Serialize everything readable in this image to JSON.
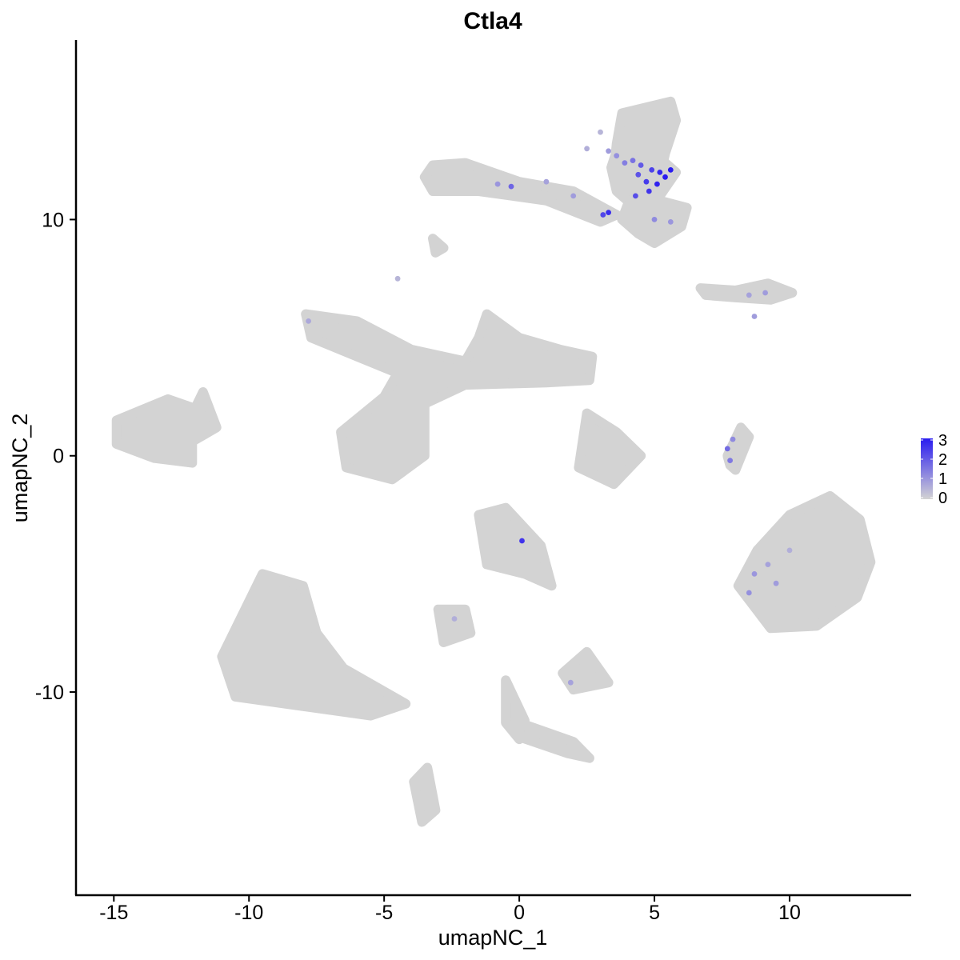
{
  "chart_data": {
    "type": "scatter",
    "title": "Ctla4",
    "xlabel": "umapNC_1",
    "ylabel": "umapNC_2",
    "xlim": [
      -16.4,
      14.5
    ],
    "ylim": [
      -18.6,
      17.6
    ],
    "x_ticks": [
      -15,
      -10,
      -5,
      0,
      5,
      10
    ],
    "y_ticks": [
      -10,
      0,
      10
    ],
    "x_tick_labels": [
      "-15",
      "-10",
      "-5",
      "0",
      "5",
      "10"
    ],
    "y_tick_labels": [
      "-10",
      "0",
      "10"
    ],
    "grid": false,
    "legend": {
      "placement": "right",
      "type": "gradient",
      "labels": [
        "3",
        "2",
        "1",
        "0"
      ],
      "values": [
        3,
        2,
        1,
        0
      ],
      "low_color": "#d3d3d3",
      "high_color": "#2a1cf0"
    },
    "low_color": "#d3d3d3",
    "high_color": "#2a1cf0",
    "clusters": [
      {
        "id": "top-cluster-upper",
        "points": [
          [
            5.6,
            15.0
          ],
          [
            3.8,
            14.5
          ],
          [
            3.6,
            13.2
          ],
          [
            3.5,
            12.0
          ],
          [
            4.4,
            11.6
          ],
          [
            5.2,
            11.8
          ],
          [
            5.4,
            12.8
          ],
          [
            5.8,
            14.2
          ]
        ]
      },
      {
        "id": "top-cluster-right",
        "points": [
          [
            3.6,
            12.9
          ],
          [
            5.2,
            12.6
          ],
          [
            5.8,
            12.0
          ],
          [
            5.2,
            11.0
          ],
          [
            4.2,
            10.6
          ],
          [
            3.6,
            11.2
          ],
          [
            3.4,
            12.2
          ]
        ]
      },
      {
        "id": "top-cluster-lower",
        "points": [
          [
            4.0,
            10.6
          ],
          [
            5.2,
            10.8
          ],
          [
            6.2,
            10.5
          ],
          [
            6.0,
            9.7
          ],
          [
            5.0,
            9.0
          ],
          [
            4.4,
            9.4
          ],
          [
            3.8,
            10.0
          ]
        ]
      },
      {
        "id": "top-cluster-arm",
        "points": [
          [
            -3.2,
            12.3
          ],
          [
            -2.0,
            12.4
          ],
          [
            0.0,
            11.6
          ],
          [
            2.0,
            11.2
          ],
          [
            3.6,
            10.2
          ],
          [
            3.0,
            9.9
          ],
          [
            1.0,
            10.8
          ],
          [
            -1.5,
            11.2
          ],
          [
            -3.2,
            11.2
          ],
          [
            -3.5,
            11.8
          ]
        ]
      },
      {
        "id": "small-blob-a",
        "points": [
          [
            -3.2,
            9.2
          ],
          [
            -3.0,
            9.0
          ],
          [
            -2.8,
            8.8
          ],
          [
            -3.1,
            8.6
          ]
        ]
      },
      {
        "id": "right-strand-upper",
        "points": [
          [
            6.7,
            7.1
          ],
          [
            8.0,
            7.0
          ],
          [
            9.2,
            7.3
          ],
          [
            10.1,
            6.9
          ],
          [
            9.3,
            6.6
          ],
          [
            8.0,
            6.7
          ],
          [
            6.9,
            6.8
          ]
        ]
      },
      {
        "id": "big-star-cluster",
        "points": [
          [
            -7.9,
            6.0
          ],
          [
            -6.0,
            5.7
          ],
          [
            -4.0,
            4.5
          ],
          [
            -2.0,
            4.0
          ],
          [
            -1.5,
            5.0
          ],
          [
            -1.2,
            6.0
          ],
          [
            0.0,
            5.0
          ],
          [
            1.5,
            4.5
          ],
          [
            2.7,
            4.2
          ],
          [
            2.6,
            3.2
          ],
          [
            1.0,
            3.1
          ],
          [
            -2.0,
            3.0
          ],
          [
            -3.5,
            2.2
          ],
          [
            -3.5,
            0.0
          ],
          [
            -4.7,
            -1.0
          ],
          [
            -6.4,
            -0.5
          ],
          [
            -6.6,
            1.0
          ],
          [
            -5.0,
            2.5
          ],
          [
            -4.5,
            3.5
          ],
          [
            -6.0,
            4.2
          ],
          [
            -7.7,
            5.0
          ]
        ]
      },
      {
        "id": "left-blob",
        "points": [
          [
            -14.9,
            1.5
          ],
          [
            -13.0,
            2.4
          ],
          [
            -12.0,
            2.0
          ],
          [
            -11.7,
            2.7
          ],
          [
            -11.2,
            1.2
          ],
          [
            -12.1,
            0.6
          ],
          [
            -12.1,
            -0.3
          ],
          [
            -13.5,
            -0.1
          ],
          [
            -14.9,
            0.5
          ]
        ]
      },
      {
        "id": "mid-small-blob",
        "points": [
          [
            2.5,
            1.8
          ],
          [
            3.6,
            1.0
          ],
          [
            4.5,
            0.0
          ],
          [
            3.5,
            -1.2
          ],
          [
            2.2,
            -0.5
          ]
        ]
      },
      {
        "id": "thin-strand",
        "points": [
          [
            7.7,
            0.0
          ],
          [
            8.2,
            1.2
          ],
          [
            8.5,
            0.8
          ],
          [
            8.0,
            -0.6
          ],
          [
            7.8,
            -0.4
          ]
        ]
      },
      {
        "id": "big-right-blob",
        "points": [
          [
            8.8,
            -4.0
          ],
          [
            10.0,
            -2.5
          ],
          [
            11.5,
            -1.7
          ],
          [
            12.6,
            -2.7
          ],
          [
            13.0,
            -4.5
          ],
          [
            12.5,
            -6.0
          ],
          [
            11.0,
            -7.2
          ],
          [
            9.3,
            -7.3
          ],
          [
            8.1,
            -5.5
          ]
        ]
      },
      {
        "id": "center-blob",
        "points": [
          [
            -1.5,
            -2.5
          ],
          [
            -0.5,
            -2.2
          ],
          [
            0.8,
            -3.8
          ],
          [
            1.2,
            -5.5
          ],
          [
            0.2,
            -5.0
          ],
          [
            -1.2,
            -4.6
          ]
        ]
      },
      {
        "id": "small-blob-b",
        "points": [
          [
            -3.0,
            -6.5
          ],
          [
            -2.0,
            -6.5
          ],
          [
            -1.8,
            -7.5
          ],
          [
            -2.8,
            -7.9
          ]
        ]
      },
      {
        "id": "small-blob-c",
        "points": [
          [
            1.6,
            -9.2
          ],
          [
            2.5,
            -8.3
          ],
          [
            3.3,
            -9.6
          ],
          [
            2.0,
            -9.9
          ]
        ]
      },
      {
        "id": "bottom-left-blob",
        "points": [
          [
            -11.0,
            -8.5
          ],
          [
            -9.5,
            -5.0
          ],
          [
            -8.0,
            -5.5
          ],
          [
            -7.5,
            -7.5
          ],
          [
            -6.5,
            -9.0
          ],
          [
            -4.2,
            -10.5
          ],
          [
            -5.5,
            -11.0
          ],
          [
            -8.0,
            -10.6
          ],
          [
            -10.5,
            -10.2
          ]
        ]
      },
      {
        "id": "bottom-strand-tail",
        "points": [
          [
            -3.9,
            -13.8
          ],
          [
            -3.4,
            -13.2
          ],
          [
            -3.1,
            -15.0
          ],
          [
            -3.6,
            -15.5
          ]
        ]
      },
      {
        "id": "bottom-branch",
        "points": [
          [
            -0.5,
            -9.5
          ],
          [
            0.2,
            -11.2
          ],
          [
            0.0,
            -12.0
          ],
          [
            -0.5,
            -11.3
          ]
        ]
      },
      {
        "id": "bottom-branch-right",
        "points": [
          [
            0.0,
            -11.3
          ],
          [
            2.0,
            -12.1
          ],
          [
            2.6,
            -12.8
          ],
          [
            1.8,
            -12.6
          ],
          [
            0.0,
            -11.9
          ]
        ]
      }
    ],
    "expressing_cells": [
      {
        "x": 4.2,
        "y": 12.5,
        "value": 1.6
      },
      {
        "x": 4.5,
        "y": 12.3,
        "value": 2.0
      },
      {
        "x": 4.9,
        "y": 12.1,
        "value": 2.4
      },
      {
        "x": 5.2,
        "y": 12.0,
        "value": 2.8
      },
      {
        "x": 5.4,
        "y": 11.8,
        "value": 3.0
      },
      {
        "x": 5.1,
        "y": 11.5,
        "value": 2.9
      },
      {
        "x": 4.7,
        "y": 11.6,
        "value": 2.5
      },
      {
        "x": 4.4,
        "y": 11.9,
        "value": 2.1
      },
      {
        "x": 3.9,
        "y": 12.4,
        "value": 1.4
      },
      {
        "x": 3.6,
        "y": 12.7,
        "value": 1.1
      },
      {
        "x": 3.3,
        "y": 12.9,
        "value": 0.9
      },
      {
        "x": 5.6,
        "y": 12.1,
        "value": 3.0
      },
      {
        "x": 4.8,
        "y": 11.2,
        "value": 2.6
      },
      {
        "x": 4.3,
        "y": 11.0,
        "value": 2.2
      },
      {
        "x": 3.3,
        "y": 10.3,
        "value": 2.7
      },
      {
        "x": 3.1,
        "y": 10.2,
        "value": 2.3
      },
      {
        "x": 5.0,
        "y": 10.0,
        "value": 1.2
      },
      {
        "x": 5.6,
        "y": 9.9,
        "value": 1.0
      },
      {
        "x": 2.0,
        "y": 11.0,
        "value": 0.9
      },
      {
        "x": 1.0,
        "y": 11.6,
        "value": 0.8
      },
      {
        "x": -0.3,
        "y": 11.4,
        "value": 1.8
      },
      {
        "x": -0.8,
        "y": 11.5,
        "value": 1.0
      },
      {
        "x": 2.5,
        "y": 13.0,
        "value": 0.6
      },
      {
        "x": 3.0,
        "y": 13.7,
        "value": 0.5
      },
      {
        "x": 7.7,
        "y": 0.3,
        "value": 1.7
      },
      {
        "x": 7.8,
        "y": -0.2,
        "value": 1.5
      },
      {
        "x": 7.9,
        "y": 0.7,
        "value": 1.2
      },
      {
        "x": 8.7,
        "y": -5.0,
        "value": 1.0
      },
      {
        "x": 9.2,
        "y": -4.6,
        "value": 0.8
      },
      {
        "x": 9.5,
        "y": -5.4,
        "value": 0.9
      },
      {
        "x": 10.0,
        "y": -4.0,
        "value": 0.6
      },
      {
        "x": 8.5,
        "y": -5.8,
        "value": 1.1
      },
      {
        "x": 0.1,
        "y": -3.6,
        "value": 2.6
      },
      {
        "x": 8.5,
        "y": 6.8,
        "value": 0.8
      },
      {
        "x": 9.1,
        "y": 6.9,
        "value": 0.9
      },
      {
        "x": 8.7,
        "y": 5.9,
        "value": 0.9
      },
      {
        "x": -7.8,
        "y": 5.7,
        "value": 0.7
      },
      {
        "x": 1.9,
        "y": -9.6,
        "value": 0.8
      },
      {
        "x": -2.4,
        "y": -6.9,
        "value": 0.6
      },
      {
        "x": -4.5,
        "y": 7.5,
        "value": 0.5
      }
    ]
  }
}
